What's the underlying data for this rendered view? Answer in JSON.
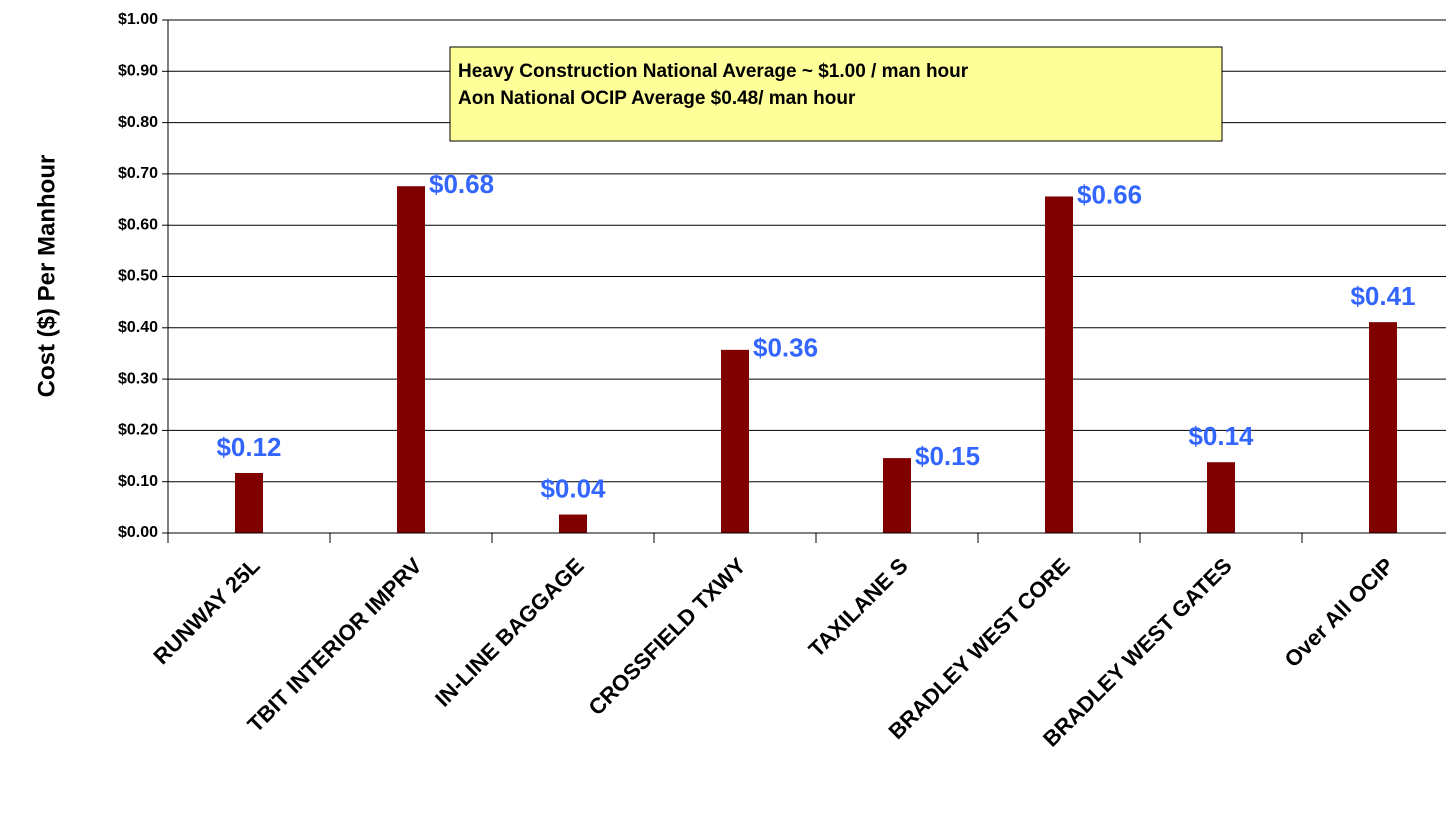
{
  "chart_data": {
    "type": "bar",
    "y_label": "Cost ($) Per Manhour",
    "annotations": [
      "Heavy Construction National Average ~ $1.00 / man hour",
      "Aon National OCIP Average $0.48/ man hour"
    ],
    "categories": [
      "RUNWAY 25L",
      "TBIT INTERIOR IMPRV",
      "IN-LINE BAGGAGE",
      "CROSSFIELD TXWY",
      "TAXILANE S",
      "BRADLEY WEST CORE",
      "BRADLEY WEST GATES",
      "Over All OCIP"
    ],
    "values": [
      0.117,
      0.676,
      0.036,
      0.357,
      0.146,
      0.656,
      0.138,
      0.411
    ],
    "value_labels": [
      "$0.12",
      "$0.68",
      "$0.04",
      "$0.36",
      "$0.15",
      "$0.66",
      "$0.14",
      "$0.41"
    ],
    "color": "#800000",
    "ylim": [
      0,
      1
    ],
    "yticks": [
      {
        "value": 0,
        "label": "$0.00"
      },
      {
        "value": 0.1,
        "label": "$0.10"
      },
      {
        "value": 0.2,
        "label": "$0.20"
      },
      {
        "value": 0.3,
        "label": "$0.30"
      },
      {
        "value": 0.4,
        "label": "$0.40"
      },
      {
        "value": 0.5,
        "label": "$0.50"
      },
      {
        "value": 0.6,
        "label": "$0.60"
      },
      {
        "value": 0.7,
        "label": "$0.70"
      },
      {
        "value": 0.8,
        "label": "$0.80"
      },
      {
        "value": 0.9,
        "label": "$0.90"
      },
      {
        "value": 1,
        "label": "$1.00"
      }
    ],
    "grid": true
  }
}
